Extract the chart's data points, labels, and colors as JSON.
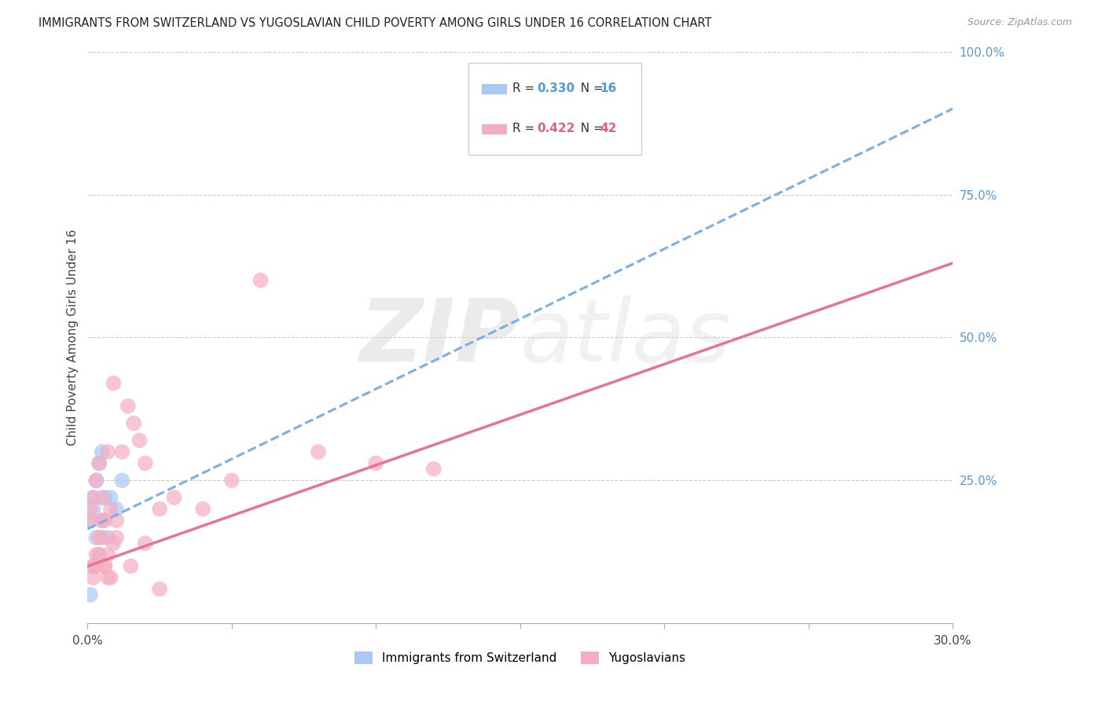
{
  "title": "IMMIGRANTS FROM SWITZERLAND VS YUGOSLAVIAN CHILD POVERTY AMONG GIRLS UNDER 16 CORRELATION CHART",
  "source": "Source: ZipAtlas.com",
  "ylabel": "Child Poverty Among Girls Under 16",
  "xlim": [
    0.0,
    0.3
  ],
  "ylim": [
    0.0,
    1.0
  ],
  "label1": "Immigrants from Switzerland",
  "label2": "Yugoslavians",
  "color1": "#a8c8f8",
  "color2": "#f5aec0",
  "line_color1": "#7aaee8",
  "line_color2": "#e8729a",
  "r1": "0.330",
  "n1": "16",
  "r2": "0.422",
  "n2": "42",
  "accent_blue": "#5599dd",
  "accent_pink": "#e06080",
  "swiss_x": [
    0.001,
    0.001,
    0.002,
    0.002,
    0.002,
    0.003,
    0.003,
    0.004,
    0.004,
    0.005,
    0.005,
    0.006,
    0.007,
    0.008,
    0.01,
    0.012
  ],
  "swiss_y": [
    0.05,
    0.18,
    0.1,
    0.2,
    0.22,
    0.15,
    0.25,
    0.12,
    0.28,
    0.18,
    0.3,
    0.22,
    0.15,
    0.22,
    0.2,
    0.25
  ],
  "yugoslav_x": [
    0.001,
    0.001,
    0.002,
    0.002,
    0.003,
    0.003,
    0.004,
    0.004,
    0.005,
    0.005,
    0.006,
    0.006,
    0.007,
    0.007,
    0.008,
    0.009,
    0.01,
    0.012,
    0.014,
    0.016,
    0.018,
    0.02,
    0.025,
    0.03,
    0.04,
    0.05,
    0.06,
    0.08,
    0.1,
    0.12,
    0.002,
    0.003,
    0.004,
    0.005,
    0.006,
    0.007,
    0.008,
    0.009,
    0.01,
    0.015,
    0.02,
    0.025
  ],
  "yugoslav_y": [
    0.18,
    0.2,
    0.22,
    0.08,
    0.25,
    0.1,
    0.28,
    0.12,
    0.22,
    0.15,
    0.18,
    0.1,
    0.3,
    0.08,
    0.2,
    0.42,
    0.18,
    0.3,
    0.38,
    0.35,
    0.32,
    0.28,
    0.2,
    0.22,
    0.2,
    0.25,
    0.6,
    0.3,
    0.28,
    0.27,
    0.1,
    0.12,
    0.15,
    0.18,
    0.1,
    0.12,
    0.08,
    0.14,
    0.15,
    0.1,
    0.14,
    0.06
  ],
  "ytick_vals": [
    0.25,
    0.5,
    0.75,
    1.0
  ],
  "ytick_labels": [
    "25.0%",
    "50.0%",
    "75.0%",
    "100.0%"
  ],
  "xtick_vals": [
    0.0,
    0.05,
    0.1,
    0.15,
    0.2,
    0.25,
    0.3
  ],
  "xtick_labels": [
    "0.0%",
    "",
    "",
    "",
    "",
    "",
    "30.0%"
  ],
  "watermark_zip": "ZIP",
  "watermark_atlas": "atlas"
}
